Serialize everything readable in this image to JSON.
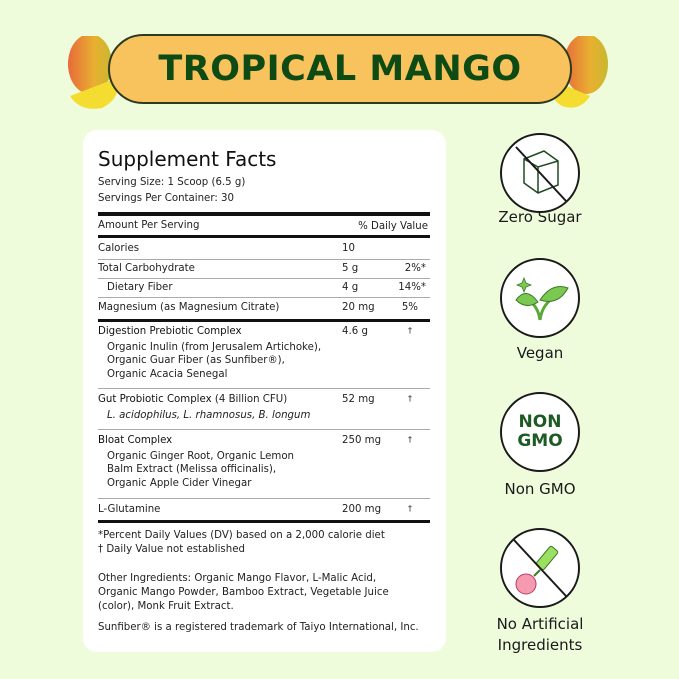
{
  "banner": {
    "title": "TROPICAL MANGO"
  },
  "facts": {
    "title": "Supplement Facts",
    "serving_size": "Serving Size: 1 Scoop (6.5 g)",
    "servings_per_container": "Servings Per Container: 30",
    "header_amount": "Amount Per Serving",
    "header_dv": "% Daily Value",
    "rows": [
      {
        "name": "Calories",
        "amount": "10",
        "dv": ""
      },
      {
        "name": "Total Carbohydrate",
        "amount": "5 g",
        "dv": "2%*"
      },
      {
        "name": "Dietary Fiber",
        "amount": "4 g",
        "dv": "14%*"
      },
      {
        "name": "Magnesium (as Magnesium Citrate)",
        "amount": "20 mg",
        "dv": "5%"
      }
    ],
    "blends": [
      {
        "name": "Digestion Prebiotic Complex",
        "amount": "4.6 g",
        "dv": "†",
        "lines": [
          "Organic Inulin (from Jerusalem Artichoke),",
          "Organic Guar Fiber (as Sunfiber®),",
          "Organic Acacia Senegal"
        ]
      },
      {
        "name": "Gut Probiotic Complex",
        "name_extra": "(4 Billion CFU)",
        "amount": "52 mg",
        "dv": "†",
        "lines": [
          "L. acidophilus, L. rhamnosus, B. longum"
        ]
      },
      {
        "name": "Bloat Complex",
        "amount": "250 mg",
        "dv": "†",
        "lines": [
          "Organic Ginger Root, Organic Lemon",
          "Balm Extract (Melissa officinalis),",
          "Organic Apple Cider Vinegar"
        ]
      },
      {
        "name": "L-Glutamine",
        "amount": "200 mg",
        "dv": "†",
        "lines": []
      }
    ],
    "footnote_1": "*Percent Daily Values (DV) based on a 2,000 calorie diet",
    "footnote_2": "† Daily Value not established",
    "other_ingredients": [
      "Other Ingredients:  Organic Mango Flavor, L-Malic Acid,",
      "Organic Mango Powder, Bamboo Extract, Vegetable Juice",
      "(color), Monk Fruit Extract."
    ],
    "trademark": "Sunfiber® is a registered trademark of Taiyo International, Inc."
  },
  "badges": [
    {
      "icon": "no-sugar-cube-icon",
      "label": "Zero Sugar"
    },
    {
      "icon": "vegan-sprout-icon",
      "label": "Vegan"
    },
    {
      "icon": "non-gmo-icon",
      "label": "Non GMO",
      "icon_text_1": "NON",
      "icon_text_2": "GMO"
    },
    {
      "icon": "no-artificial-icon",
      "label_1": "No Artificial",
      "label_2": "Ingredients"
    }
  ],
  "colors": {
    "background": "#eefcdc",
    "banner": "#f8c35c",
    "banner_text": "#0d4a14"
  }
}
